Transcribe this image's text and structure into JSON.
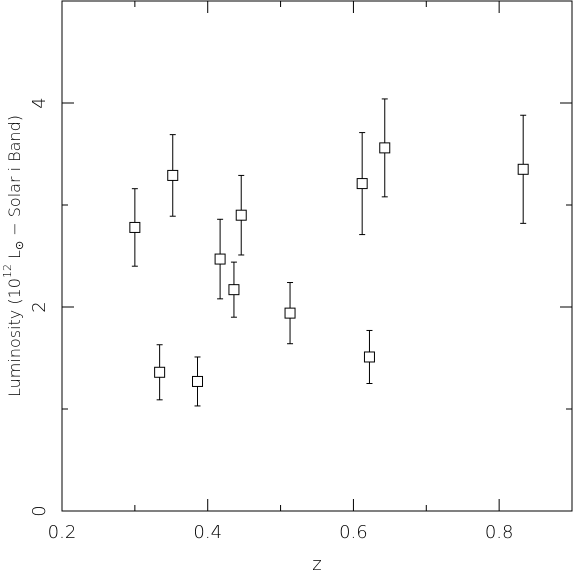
{
  "chart_data": {
    "type": "scatter",
    "x_label": "z",
    "y_label": {
      "prefix": "Luminosity (10",
      "sup": "12",
      "mid": " L",
      "sub": "⊙",
      "suffix": " − Solar i Band)"
    },
    "x": [
      0.3,
      0.334,
      0.352,
      0.386,
      0.417,
      0.436,
      0.446,
      0.513,
      0.612,
      0.622,
      0.643,
      0.833
    ],
    "values": [
      2.78,
      1.36,
      3.29,
      1.27,
      2.47,
      2.17,
      2.9,
      1.94,
      3.21,
      1.51,
      3.56,
      3.35
    ],
    "errors": [
      0.38,
      0.27,
      0.4,
      0.24,
      0.39,
      0.27,
      0.39,
      0.3,
      0.5,
      0.26,
      0.48,
      0.53
    ],
    "color": "#000000",
    "xlim": [
      0.2,
      0.9
    ],
    "ylim": [
      0,
      5
    ],
    "xticks": [
      0.2,
      0.4,
      0.6,
      0.8
    ],
    "yticks": [
      0,
      2,
      4
    ],
    "x_minor_ticks": [
      0.3,
      0.5,
      0.7
    ],
    "y_minor_ticks": [
      1,
      3
    ]
  }
}
